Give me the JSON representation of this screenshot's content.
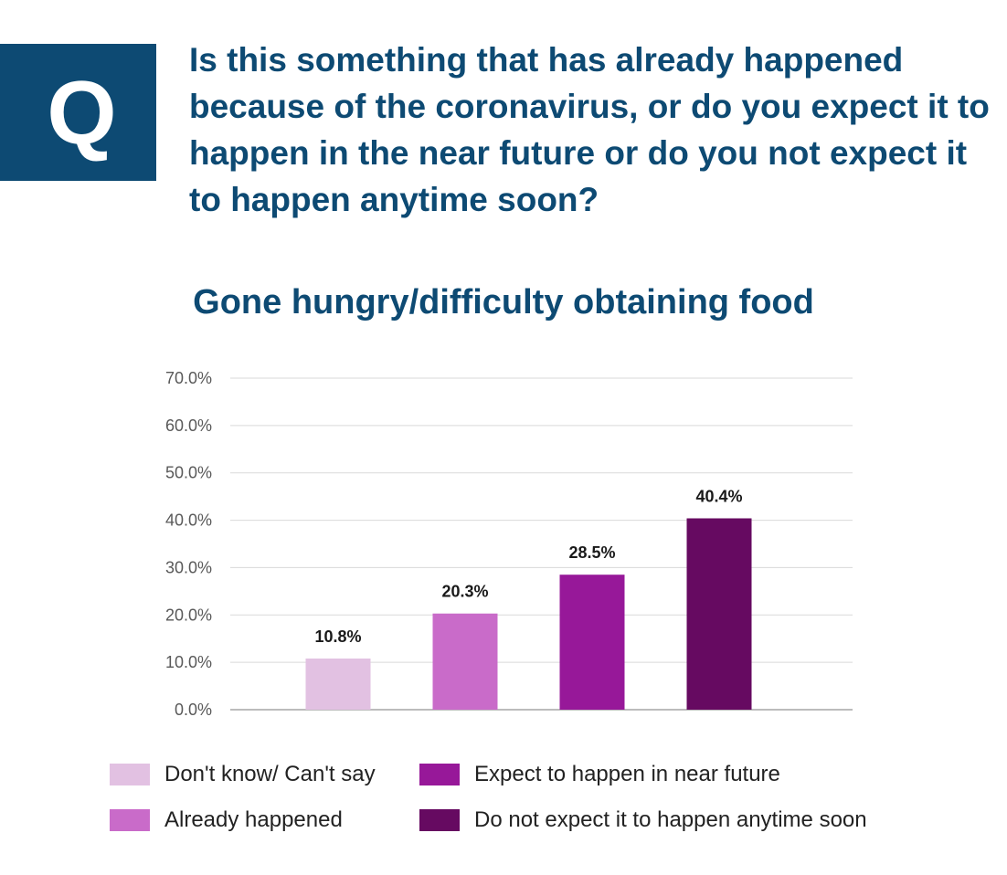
{
  "badge": {
    "letter": "Q"
  },
  "question": "Is this something that has already happened because of the coronavirus, or do you expect it to happen in the near future or do you not expect it to happen anytime soon?",
  "chart_data": {
    "type": "bar",
    "title": "Gone hungry/difficulty obtaining food",
    "categories": [
      "Don't know/ Can't say",
      "Already happened",
      "Expect to happen in near future",
      "Do not expect it to happen anytime soon"
    ],
    "values": [
      10.8,
      20.3,
      28.5,
      40.4
    ],
    "value_labels": [
      "10.8%",
      "20.3%",
      "28.5%",
      "40.4%"
    ],
    "colors": [
      "#e2c1e2",
      "#c96bc9",
      "#971899",
      "#660a61"
    ],
    "ylim": [
      0,
      70
    ],
    "yticks": [
      0,
      10,
      20,
      30,
      40,
      50,
      60,
      70
    ],
    "ytick_labels": [
      "0.0%",
      "10.0%",
      "20.0%",
      "30.0%",
      "40.0%",
      "50.0%",
      "60.0%",
      "70.0%"
    ],
    "grid": true,
    "legend_position": "bottom",
    "xlabel": "",
    "ylabel": ""
  }
}
